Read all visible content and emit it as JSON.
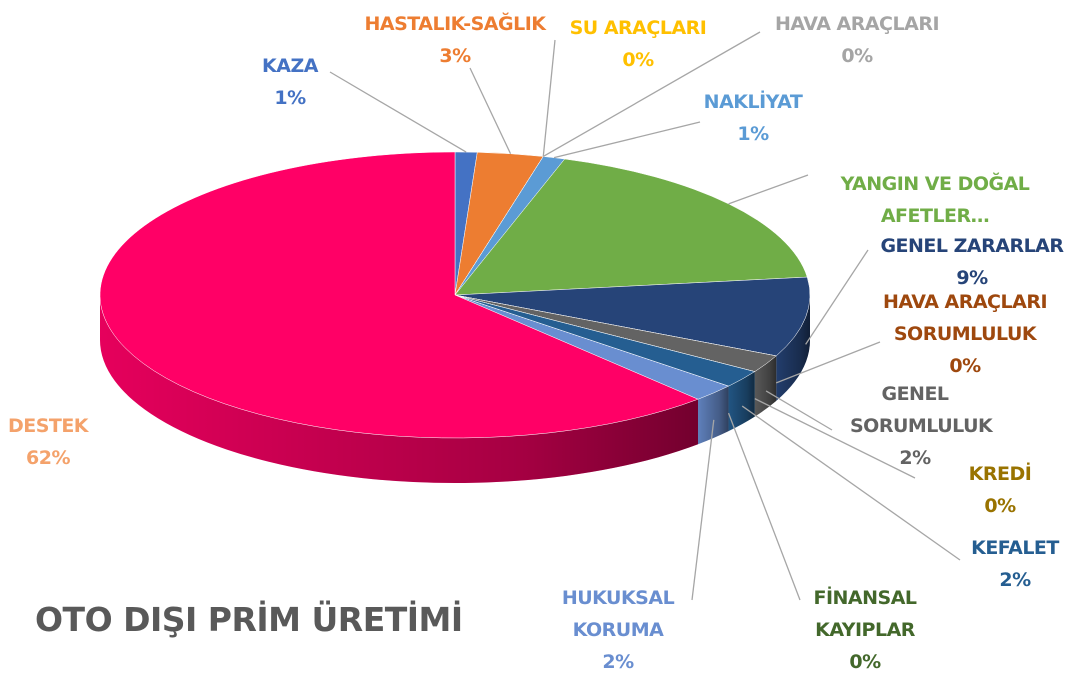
{
  "chart_data": {
    "type": "pie3d",
    "title": "OTO DIŞI PRİM ÜRETİMİ",
    "categories": [
      "KAZA",
      "HASTALIK-SAĞLIK",
      "SU ARAÇLARI",
      "HAVA ARAÇLARI",
      "NAKLİYAT",
      "YANGIN VE DOĞAL AFETLER…",
      "GENEL ZARARLAR",
      "HAVA ARAÇLARI SORUMLULUK",
      "GENEL SORUMLULUK",
      "KREDİ",
      "KEFALET",
      "FİNANSAL KAYIPLAR",
      "HUKUKSAL KORUMA",
      "DESTEK"
    ],
    "values": [
      1,
      3,
      0,
      0,
      1,
      18,
      9,
      0,
      2,
      0,
      2,
      0,
      2,
      62
    ],
    "value_labels": [
      "1%",
      "3%",
      "0%",
      "0%",
      "1%",
      null,
      "9%",
      "0%",
      "2%",
      "0%",
      "2%",
      "0%",
      "2%",
      "62%"
    ],
    "colors": [
      "#4472c4",
      "#ed7d31",
      "#ffc000",
      "#a5a5a5",
      "#5b9bd5",
      "#70ad47",
      "#264478",
      "#9e480e",
      "#636363",
      "#997300",
      "#255e91",
      "#43682b",
      "#698ed0",
      "#ff0066"
    ],
    "label_colors": [
      "#4472c4",
      "#ed7d31",
      "#ffc000",
      "#a5a5a5",
      "#5b9bd5",
      "#70ad47",
      "#264478",
      "#9e480e",
      "#636363",
      "#997300",
      "#255e91",
      "#43682b",
      "#698ed0",
      "#f4a26b"
    ]
  }
}
